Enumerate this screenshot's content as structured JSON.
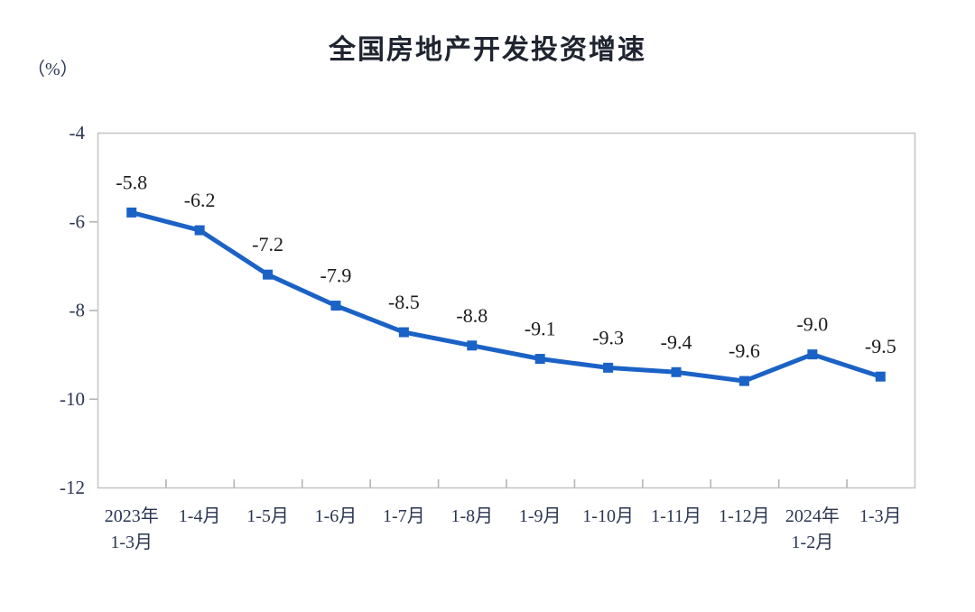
{
  "header": {
    "title": "全国房地产开发投资增速"
  },
  "chart_data": {
    "type": "line",
    "title": "全国房地产开发投资增速",
    "ylabel": "（%）",
    "xlabel": "",
    "categories": [
      "2023年\n1-3月",
      "1-4月",
      "1-5月",
      "1-6月",
      "1-7月",
      "1-8月",
      "1-9月",
      "1-10月",
      "1-11月",
      "1-12月",
      "2024年\n1-2月",
      "1-3月"
    ],
    "values": [
      -5.8,
      -6.2,
      -7.2,
      -7.9,
      -8.5,
      -8.8,
      -9.1,
      -9.3,
      -9.4,
      -9.6,
      -9.0,
      -9.5
    ],
    "data_labels": [
      "-5.8",
      "-6.2",
      "-7.2",
      "-7.9",
      "-8.5",
      "-8.8",
      "-9.1",
      "-9.3",
      "-9.4",
      "-9.6",
      "-9.0",
      "-9.5"
    ],
    "ylim": [
      -12,
      -4
    ],
    "y_ticks": [
      -4,
      -6,
      -8,
      -10,
      -12
    ],
    "grid": false,
    "legend": "none",
    "marker": "square",
    "colors": {
      "line": "#1b62c6",
      "marker": "#1b62c6",
      "plot_border": "#c6c6c6",
      "tick": "#b3b3b3",
      "axis_text": "#2a3550",
      "data_label_text": "#1c1c1c",
      "title_text": "#1f2430",
      "background": "#ffffff"
    }
  }
}
